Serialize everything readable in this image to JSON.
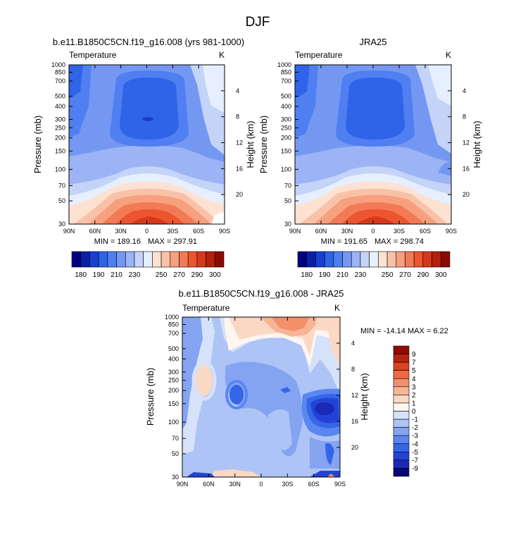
{
  "page_title": "DJF",
  "colors": {
    "abs_scale": [
      "#00007f",
      "#0a1fa8",
      "#1a3fd0",
      "#2f63e8",
      "#4f7ff0",
      "#7498f2",
      "#9cb4f5",
      "#c4d4f8",
      "#e6efff",
      "#fde2d2",
      "#f9c2a8",
      "#f6a07e",
      "#f27a55",
      "#ec5530",
      "#d8381a",
      "#b3200c",
      "#8a0b04"
    ],
    "diff_scale": [
      "#06087a",
      "#1a2ab6",
      "#2443d6",
      "#3566e8",
      "#5a86ef",
      "#84a4f2",
      "#aec4f6",
      "#d6e2fa",
      "#fff6f0",
      "#fbd8c4",
      "#f7b596",
      "#f3906a",
      "#ee6a43",
      "#dd4320",
      "#b82310",
      "#900c04"
    ]
  },
  "chart_data": [
    {
      "type": "heatmap",
      "title": "b.e11.B1850C5CN.f19_g16.008 (yrs 981-1000)",
      "left_string": "Temperature",
      "right_string": "K",
      "ylabel": "Pressure (mb)",
      "ylabel_right": "Height (km)",
      "x_ticks": [
        "90N",
        "60N",
        "30N",
        "0",
        "30S",
        "60S",
        "90S"
      ],
      "y_ticks": [
        "30",
        "50",
        "70",
        "100",
        "150",
        "200",
        "250",
        "300",
        "400",
        "500",
        "700",
        "850",
        "1000"
      ],
      "y_right_ticks": [
        "20",
        "16",
        "12",
        "8",
        "4"
      ],
      "ylim": [
        1000,
        30
      ],
      "min_label": "MIN = 189.16",
      "max_label": "MAX = 297.91",
      "min_value": 189.16,
      "max_value": 297.91,
      "colorbar_labels": [
        "180",
        "190",
        "210",
        "230",
        "250",
        "270",
        "290",
        "300"
      ]
    },
    {
      "type": "heatmap",
      "title": "JRA25",
      "left_string": "Temperature",
      "right_string": "K",
      "ylabel": "Pressure (mb)",
      "ylabel_right": "Height (km)",
      "x_ticks": [
        "90N",
        "60N",
        "30N",
        "0",
        "30S",
        "60S",
        "90S"
      ],
      "y_ticks": [
        "30",
        "50",
        "70",
        "100",
        "150",
        "200",
        "250",
        "300",
        "400",
        "500",
        "700",
        "850",
        "1000"
      ],
      "y_right_ticks": [
        "20",
        "16",
        "12",
        "8",
        "4"
      ],
      "ylim": [
        1000,
        30
      ],
      "min_label": "MIN = 191.65",
      "max_label": "MAX = 298.74",
      "min_value": 191.65,
      "max_value": 298.74,
      "colorbar_labels": [
        "180",
        "190",
        "210",
        "230",
        "250",
        "270",
        "290",
        "300"
      ]
    },
    {
      "type": "heatmap",
      "title": "b.e11.B1850C5CN.f19_g16.008 - JRA25",
      "left_string": "Temperature",
      "right_string": "K",
      "ylabel": "Pressure (mb)",
      "ylabel_right": "Height (km)",
      "x_ticks": [
        "90N",
        "60N",
        "30N",
        "0",
        "30S",
        "60S",
        "90S"
      ],
      "y_ticks": [
        "30",
        "50",
        "70",
        "100",
        "150",
        "200",
        "250",
        "300",
        "400",
        "500",
        "700",
        "850",
        "1000"
      ],
      "y_right_ticks": [
        "20",
        "16",
        "12",
        "8",
        "4"
      ],
      "ylim": [
        1000,
        30
      ],
      "min_label": "MIN = -14.14",
      "max_label": "MAX =   6.22",
      "min_value": -14.14,
      "max_value": 6.22,
      "colorbar_labels": [
        "9",
        "7",
        "5",
        "4",
        "3",
        "2",
        "1",
        "0",
        "-1",
        "-2",
        "-3",
        "-4",
        "-5",
        "-7",
        "-9"
      ]
    }
  ]
}
